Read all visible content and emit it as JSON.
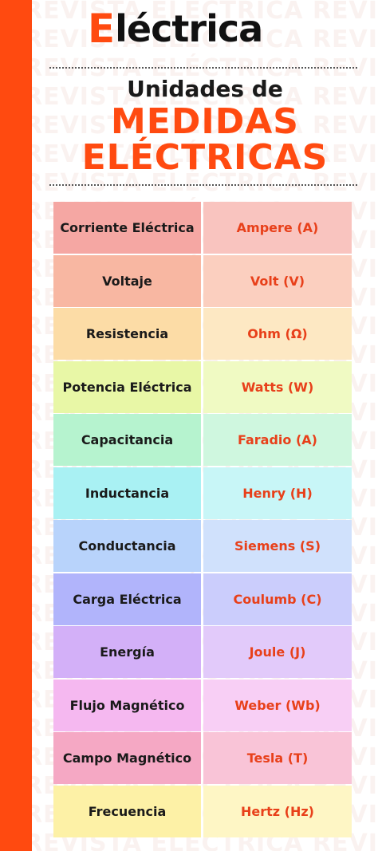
{
  "brand": {
    "mark": "E",
    "rest": "léctrica"
  },
  "watermark": {
    "text": "REVISTA ELÉCTRICA REVISTA ELÉCTRICA REVISTA ELÉCTRICA"
  },
  "title": {
    "line1": "Unidades de",
    "line2": "MEDIDAS",
    "line3": "ELÉCTRICAS"
  },
  "rows": [
    {
      "magnitude": "Corriente Eléctrica",
      "unit": "Ampere (A)",
      "left_color": "#f5a7a3",
      "right_color": "#f9c4bf"
    },
    {
      "magnitude": "Voltaje",
      "unit": "Volt (V)",
      "left_color": "#f8b7a2",
      "right_color": "#fbcfbf"
    },
    {
      "magnitude": "Resistencia",
      "unit": "Ohm (Ω)",
      "left_color": "#fcdca6",
      "right_color": "#fde8c3"
    },
    {
      "magnitude": "Potencia Eléctrica",
      "unit": "Watts (W)",
      "left_color": "#e8f7a6",
      "right_color": "#f0fac3"
    },
    {
      "magnitude": "Capacitancia",
      "unit": "Faradio (A)",
      "left_color": "#b6f3cf",
      "right_color": "#cff7df"
    },
    {
      "magnitude": "Inductancia",
      "unit": "Henry (H)",
      "left_color": "#a9f1f3",
      "right_color": "#c8f6f7"
    },
    {
      "magnitude": "Conductancia",
      "unit": "Siemens (S)",
      "left_color": "#b8d3fb",
      "right_color": "#d0e1fc"
    },
    {
      "magnitude": "Carga Eléctrica",
      "unit": "Coulumb (C)",
      "left_color": "#b1b4fb",
      "right_color": "#cbcdfc"
    },
    {
      "magnitude": "Energía",
      "unit": "Joule (J)",
      "left_color": "#d3b0f8",
      "right_color": "#e2cafa"
    },
    {
      "magnitude": "Flujo Magnético",
      "unit": "Weber (Wb)",
      "left_color": "#f5b8f0",
      "right_color": "#f8cff5"
    },
    {
      "magnitude": "Campo Magnético",
      "unit": "Tesla (T)",
      "left_color": "#f5a8c4",
      "right_color": "#f9c4d7"
    },
    {
      "magnitude": "Frecuencia",
      "unit": "Hertz (Hz)",
      "left_color": "#fdf1a6",
      "right_color": "#fef6c5"
    }
  ]
}
